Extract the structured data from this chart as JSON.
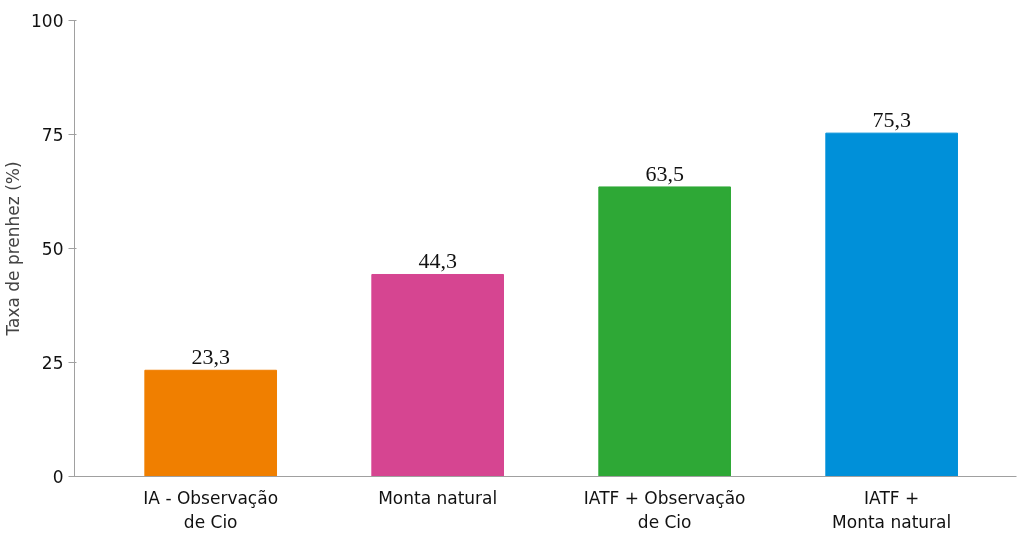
{
  "chart_data": {
    "type": "bar",
    "ylabel": "Taxa de prenhez (%)",
    "categories": [
      "IA - Observação\nde Cio",
      "Monta natural",
      "IATF + Observação\nde Cio",
      "IATF +\nMonta natural"
    ],
    "values": [
      23.3,
      44.3,
      63.5,
      75.3
    ],
    "colors": [
      "#f07f00",
      "#d64591",
      "#2ea836",
      "#0090d9"
    ],
    "value_labels": [
      "23,3",
      "44,3",
      "63,5",
      "75,3"
    ],
    "ylim": [
      0,
      100
    ],
    "yticks": [
      0,
      25,
      50,
      75,
      100
    ],
    "grid": false
  }
}
